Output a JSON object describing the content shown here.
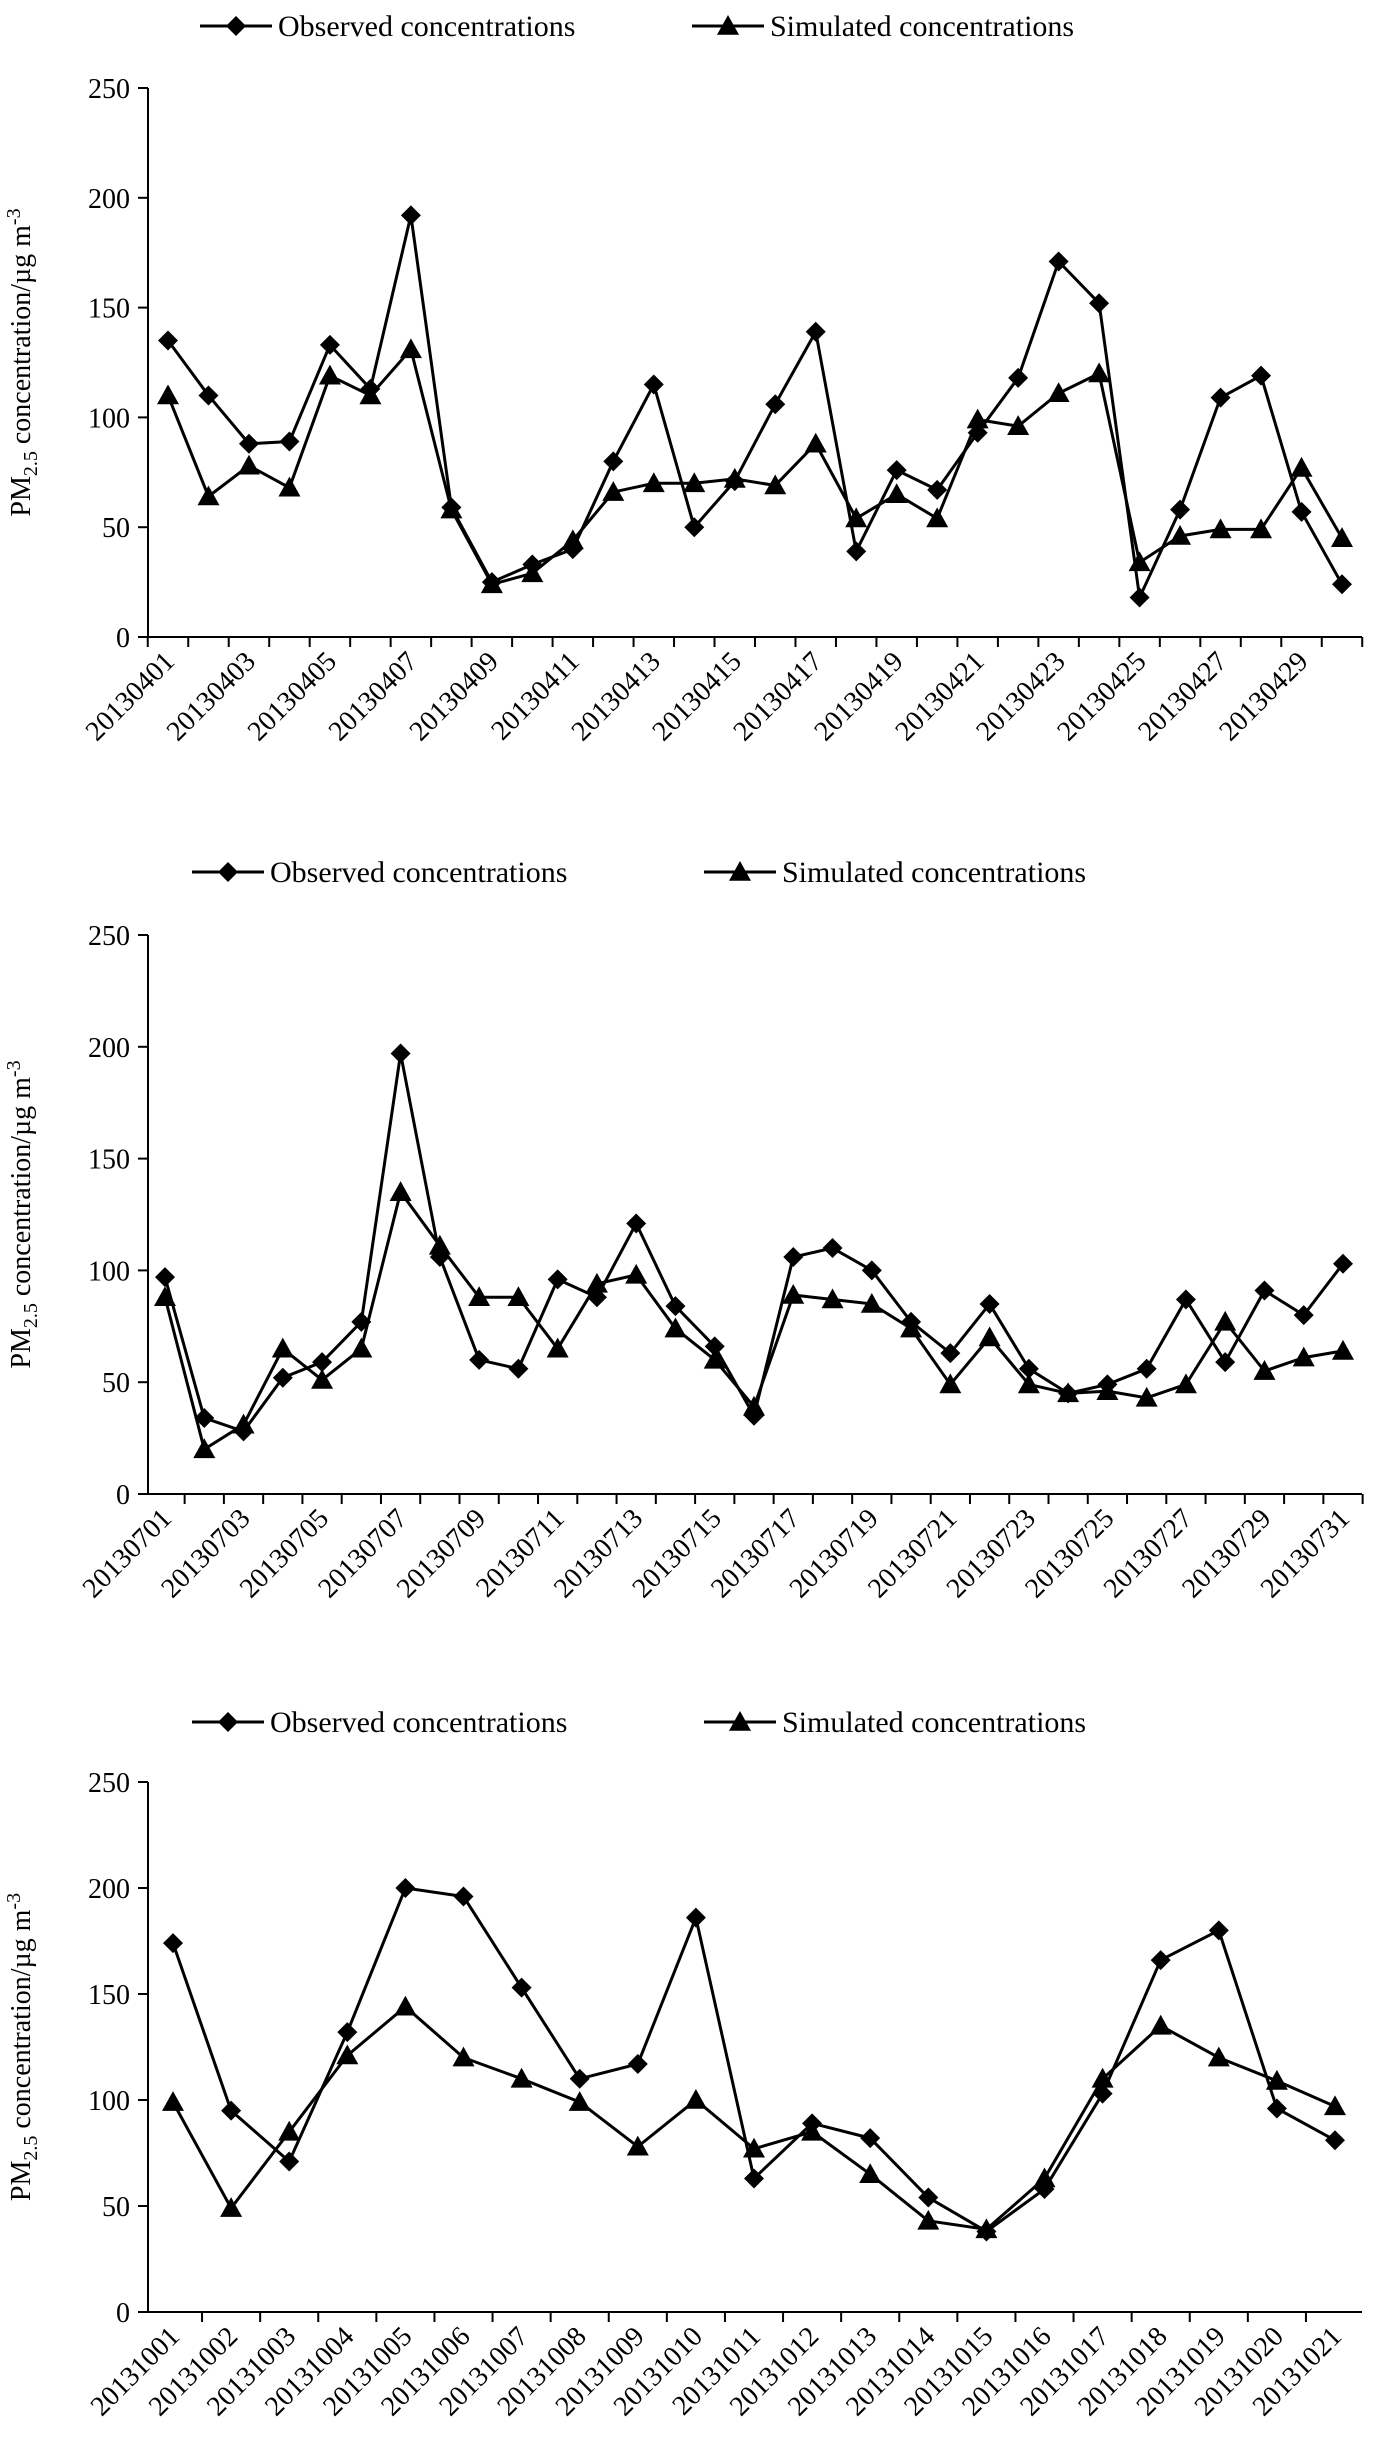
{
  "chart_data": [
    {
      "type": "line",
      "ylabel": "PM2.5 concentration/µg m-3",
      "ylabel_parts": {
        "pre": "PM",
        "sub": "2.5",
        "post": " concentration/µg m",
        "sup": "-3"
      },
      "ylim": [
        0,
        250
      ],
      "yticks": [
        "0",
        "50",
        "100",
        "150",
        "200",
        "250"
      ],
      "legend": "top",
      "x": [
        "20130401",
        "20130402",
        "20130403",
        "20130404",
        "20130405",
        "20130406",
        "20130407",
        "20130408",
        "20130409",
        "20130410",
        "20130411",
        "20130412",
        "20130413",
        "20130414",
        "20130415",
        "20130416",
        "20130417",
        "20130418",
        "20130419",
        "20130420",
        "20130421",
        "20130422",
        "20130423",
        "20130424",
        "20130425",
        "20130426",
        "20130427",
        "20130428",
        "20130429",
        "20130430"
      ],
      "xtick_labels": [
        "20130401",
        "20130403",
        "20130405",
        "20130407",
        "20130409",
        "20130411",
        "20130413",
        "20130415",
        "20130417",
        "20130419",
        "20130421",
        "20130423",
        "20130425",
        "20130427",
        "20130429"
      ],
      "series": [
        {
          "name": "Observed concentrations",
          "marker": "diamond",
          "values": [
            135,
            110,
            88,
            89,
            133,
            113,
            192,
            59,
            25,
            33,
            40,
            80,
            115,
            50,
            71,
            106,
            139,
            39,
            76,
            67,
            93,
            118,
            171,
            152,
            18,
            58,
            109,
            119,
            57,
            24
          ]
        },
        {
          "name": "Simulated concentrations",
          "marker": "triangle",
          "values": [
            110,
            64,
            78,
            68,
            119,
            110,
            131,
            58,
            24,
            29,
            44,
            66,
            70,
            70,
            72,
            69,
            88,
            54,
            65,
            54,
            99,
            96,
            111,
            120,
            34,
            46,
            49,
            49,
            77,
            45
          ]
        }
      ]
    },
    {
      "type": "line",
      "ylabel": "PM2.5 concentration/µg m-3",
      "ylabel_parts": {
        "pre": "PM",
        "sub": "2.5",
        "post": " concentration/µg m",
        "sup": "-3"
      },
      "ylim": [
        0,
        250
      ],
      "yticks": [
        "0",
        "50",
        "100",
        "150",
        "200",
        "250"
      ],
      "legend": "top",
      "x": [
        "20130701",
        "20130702",
        "20130703",
        "20130704",
        "20130705",
        "20130706",
        "20130707",
        "20130708",
        "20130709",
        "20130710",
        "20130711",
        "20130712",
        "20130713",
        "20130714",
        "20130715",
        "20130716",
        "20130717",
        "20130718",
        "20130719",
        "20130720",
        "20130721",
        "20130722",
        "20130723",
        "20130724",
        "20130725",
        "20130726",
        "20130727",
        "20130728",
        "20130729",
        "20130730",
        "20130731"
      ],
      "xtick_labels": [
        "20130701",
        "20130703",
        "20130705",
        "20130707",
        "20130709",
        "20130711",
        "20130713",
        "20130715",
        "20130717",
        "20130719",
        "20130721",
        "20130723",
        "20130725",
        "20130727",
        "20130729",
        "20130731"
      ],
      "series": [
        {
          "name": "Observed concentrations",
          "marker": "diamond",
          "values": [
            97,
            34,
            28,
            52,
            59,
            77,
            197,
            106,
            60,
            56,
            96,
            88,
            121,
            84,
            66,
            35,
            106,
            110,
            100,
            77,
            63,
            85,
            56,
            45,
            49,
            56,
            87,
            59,
            91,
            80,
            103
          ]
        },
        {
          "name": "Simulated concentrations",
          "marker": "triangle",
          "values": [
            88,
            20,
            31,
            65,
            51,
            65,
            135,
            111,
            88,
            88,
            65,
            94,
            98,
            74,
            60,
            39,
            89,
            87,
            85,
            74,
            49,
            70,
            49,
            45,
            46,
            43,
            49,
            77,
            55,
            61,
            64
          ]
        }
      ]
    },
    {
      "type": "line",
      "ylabel": "PM2.5 concentration/µg m-3",
      "ylabel_parts": {
        "pre": "PM",
        "sub": "2.5",
        "post": " concentration/µg m",
        "sup": "-3"
      },
      "ylim": [
        0,
        250
      ],
      "yticks": [
        "0",
        "50",
        "100",
        "150",
        "200",
        "250"
      ],
      "legend": "top",
      "x": [
        "20131001",
        "20131002",
        "20131003",
        "20131004",
        "20131005",
        "20131006",
        "20131007",
        "20131008",
        "20131009",
        "20131010",
        "20131011",
        "20131012",
        "20131013",
        "20131014",
        "20131015",
        "20131016",
        "20131017",
        "20131018",
        "20131019",
        "20131020",
        "20131021"
      ],
      "xtick_labels": [
        "20131001",
        "20131002",
        "20131003",
        "20131004",
        "20131005",
        "20131006",
        "20131007",
        "20131008",
        "20131009",
        "20131010",
        "20131011",
        "20131012",
        "20131013",
        "20131014",
        "20131015",
        "20131016",
        "20131017",
        "20131018",
        "20131019",
        "20131020",
        "20131021"
      ],
      "series": [
        {
          "name": "Observed concentrations",
          "marker": "diamond",
          "values": [
            174,
            95,
            71,
            132,
            200,
            196,
            153,
            110,
            117,
            186,
            63,
            89,
            82,
            54,
            38,
            58,
            103,
            166,
            180,
            96,
            81
          ]
        },
        {
          "name": "Simulated concentrations",
          "marker": "triangle",
          "values": [
            99,
            49,
            85,
            121,
            144,
            120,
            110,
            99,
            78,
            100,
            77,
            85,
            65,
            43,
            39,
            63,
            110,
            135,
            120,
            109,
            97
          ]
        }
      ]
    }
  ]
}
